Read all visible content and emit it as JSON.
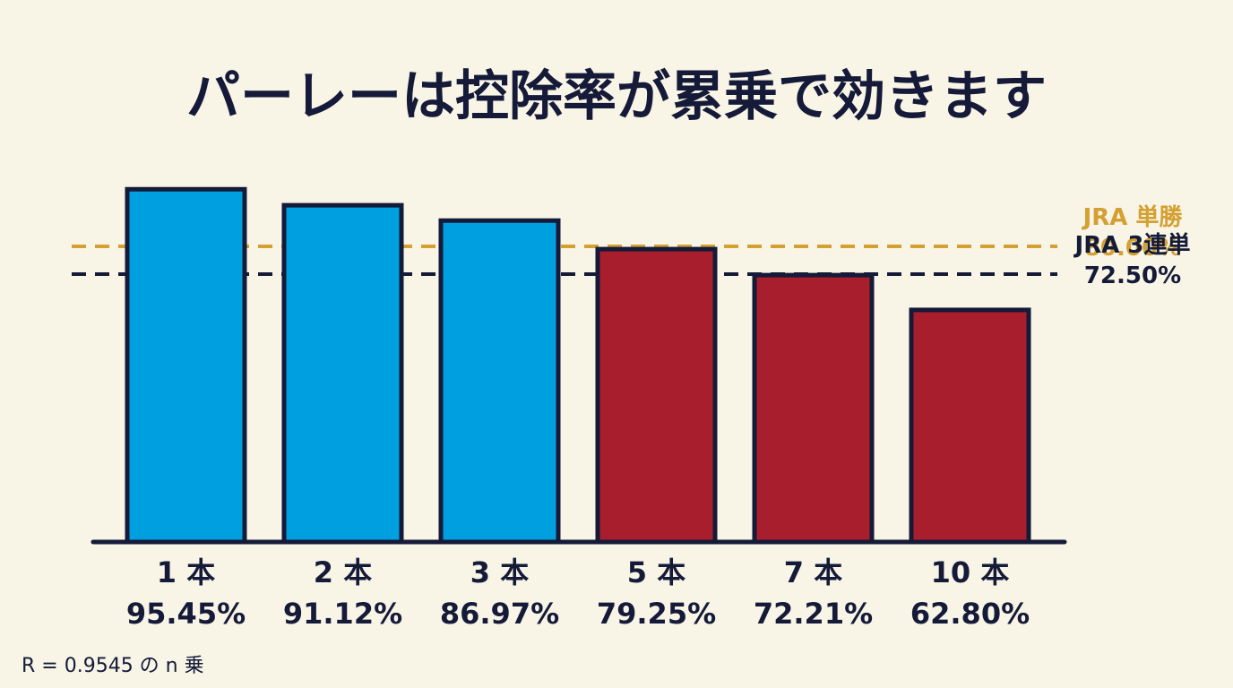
{
  "chart_data": {
    "type": "bar",
    "title": "パーレーは控除率が累乗で効きます",
    "categories": [
      "1 本",
      "2 本",
      "3 本",
      "5 本",
      "7 本",
      "10 本"
    ],
    "values": [
      95.45,
      91.12,
      86.97,
      79.25,
      72.21,
      62.8
    ],
    "value_labels": [
      "95.45%",
      "91.12%",
      "86.97%",
      "79.25%",
      "72.21%",
      "62.80%"
    ],
    "bar_colors": [
      "#00a0e0",
      "#00a0e0",
      "#00a0e0",
      "#a81e2d",
      "#a81e2d",
      "#a81e2d"
    ],
    "ylim": [
      0,
      100
    ],
    "grid": false,
    "reference_lines": [
      {
        "name": "JRA 単勝",
        "value": 80.0,
        "label": "80.00%",
        "color": "#d4a032"
      },
      {
        "name": "JRA 3連単",
        "value": 72.5,
        "label": "72.50%",
        "color": "#141a38"
      }
    ],
    "footnote": "R = 0.9545 の n 乗"
  },
  "colors": {
    "background": "#f8f4e6",
    "text": "#141a38",
    "outline": "#141a38"
  }
}
